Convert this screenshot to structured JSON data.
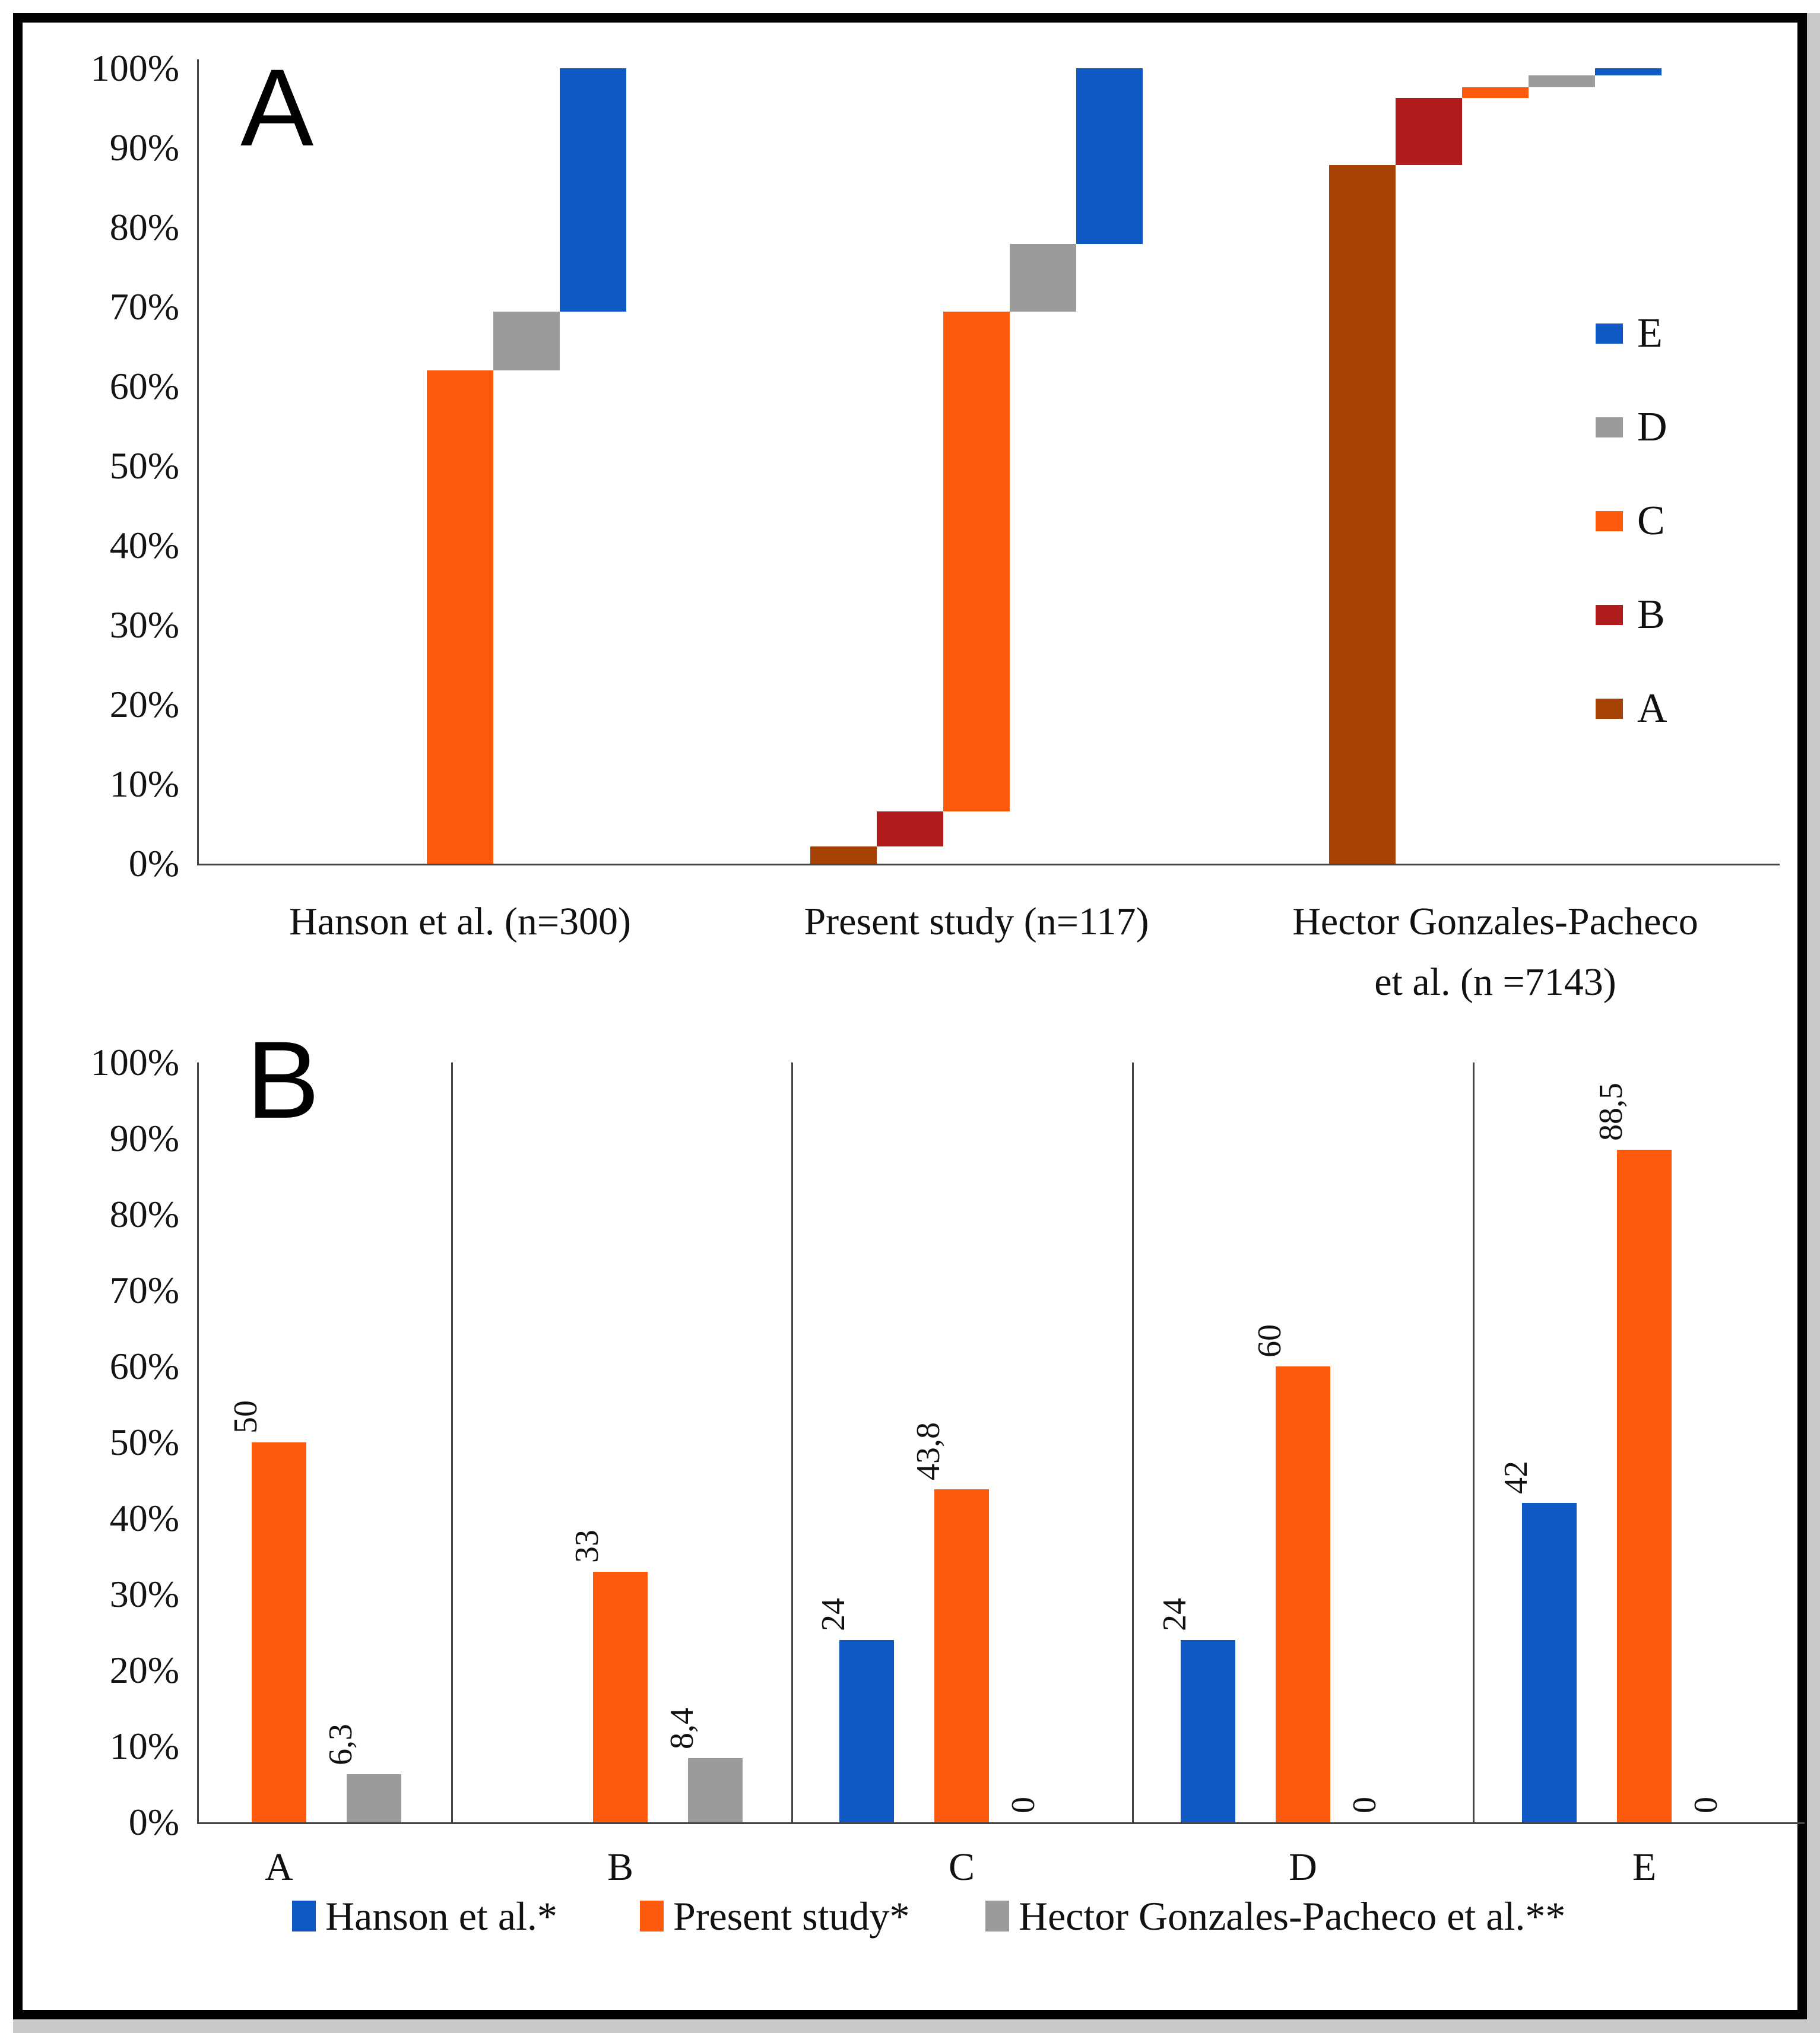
{
  "page": {
    "frame_color": "#000000",
    "axis_color": "#454545",
    "background": "#ffffff"
  },
  "chart_data": [
    {
      "type": "bar",
      "subtype": "stepped-100pct-stacked-columns",
      "panel_label": "A",
      "ylim": [
        0,
        100
      ],
      "grid": false,
      "y_ticks": [
        "0%",
        "10%",
        "20%",
        "30%",
        "40%",
        "50%",
        "60%",
        "70%",
        "80%",
        "90%",
        "100%"
      ],
      "legend_position": "right",
      "legend_order": [
        "E",
        "D",
        "C",
        "B",
        "A"
      ],
      "categories": [
        "Hanson et al. (n=300)",
        "Present study (n=117)",
        "Hector Gonzales-Pacheco et al. (n =7143)"
      ],
      "category_display": [
        "Hanson et al. (n=300)",
        "Present study (n=117)",
        "Hector Gonzales-Pacheco\net al. (n =7143)"
      ],
      "series": [
        {
          "name": "A",
          "color": "#A64205",
          "values": [
            null,
            2.2,
            87.8
          ],
          "segments": [
            null,
            {
              "from": 0,
              "to": 2.2
            },
            {
              "from": 0,
              "to": 87.8
            }
          ]
        },
        {
          "name": "B",
          "color": "#B01B1E",
          "values": [
            null,
            4.4,
            8.5
          ],
          "segments": [
            null,
            {
              "from": 2.2,
              "to": 6.6
            },
            {
              "from": 87.8,
              "to": 96.3
            }
          ]
        },
        {
          "name": "C",
          "color": "#FE5A0D",
          "values": [
            62,
            62.8,
            1.3
          ],
          "segments": [
            {
              "from": 0,
              "to": 62
            },
            {
              "from": 6.6,
              "to": 69.4
            },
            {
              "from": 96.3,
              "to": 97.6
            }
          ]
        },
        {
          "name": "D",
          "color": "#9B9B9B",
          "values": [
            7.4,
            8.5,
            1.5
          ],
          "segments": [
            {
              "from": 62,
              "to": 69.4
            },
            {
              "from": 69.4,
              "to": 77.9
            },
            {
              "from": 97.6,
              "to": 99.1
            }
          ]
        },
        {
          "name": "E",
          "color": "#1058C3",
          "values": [
            30.6,
            22.1,
            0.9
          ],
          "segments": [
            {
              "from": 69.4,
              "to": 100
            },
            {
              "from": 77.9,
              "to": 100
            },
            {
              "from": 99.1,
              "to": 100
            }
          ]
        }
      ]
    },
    {
      "type": "bar",
      "subtype": "grouped-columns",
      "panel_label": "B",
      "ylim": [
        0,
        100
      ],
      "grid": "vertical-category-separators",
      "y_ticks": [
        "0%",
        "10%",
        "20%",
        "30%",
        "40%",
        "50%",
        "60%",
        "70%",
        "80%",
        "90%",
        "100%"
      ],
      "legend_position": "bottom",
      "categories": [
        "A",
        "B",
        "C",
        "D",
        "E"
      ],
      "series": [
        {
          "name": "Hanson et al.*",
          "color": "#1058C3",
          "values": [
            null,
            null,
            24,
            24,
            42
          ],
          "labels": [
            null,
            null,
            "24",
            "24",
            "42"
          ]
        },
        {
          "name": "Present study*",
          "color": "#FE5A0D",
          "values": [
            50,
            33,
            43.8,
            60,
            88.5
          ],
          "labels": [
            "50",
            "33",
            "43,8",
            "60",
            "88,5"
          ]
        },
        {
          "name": "Hector Gonzales-Pacheco et al.**",
          "color": "#9B9B9B",
          "values": [
            6.3,
            8.4,
            0,
            0,
            0
          ],
          "labels": [
            "6,3",
            "8,4",
            "0",
            "0",
            "0"
          ]
        }
      ]
    }
  ]
}
